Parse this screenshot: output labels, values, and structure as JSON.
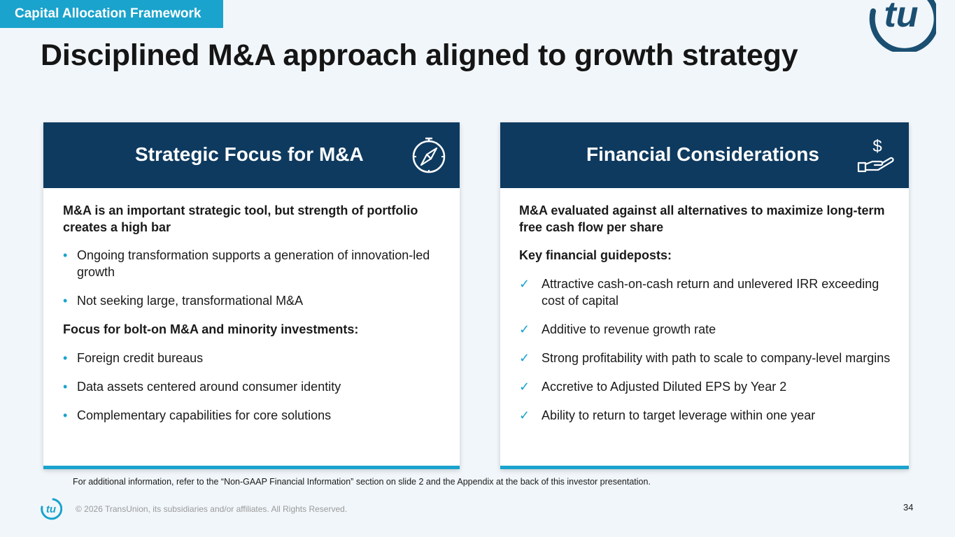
{
  "section_tag": "Capital Allocation Framework",
  "title": "Disciplined M&A approach aligned to growth strategy",
  "left_card": {
    "title": "Strategic Focus for M&A",
    "icon": "compass-icon",
    "intro": "M&A is an important strategic tool, but strength of portfolio creates a high bar",
    "bullets_1": [
      "Ongoing transformation supports a generation of innovation-led growth",
      "Not seeking large, transformational M&A"
    ],
    "subhead": "Focus for bolt-on M&A and minority investments:",
    "bullets_2": [
      "Foreign credit bureaus",
      "Data assets centered around consumer identity",
      "Complementary capabilities for core solutions"
    ]
  },
  "right_card": {
    "title": "Financial Considerations",
    "icon": "dollar-hand-icon",
    "intro": "M&A evaluated against all alternatives to maximize long-term free cash flow per share",
    "subhead": "Key financial guideposts:",
    "checks": [
      "Attractive cash-on-cash return and unlevered IRR exceeding cost of capital",
      "Additive to revenue growth rate",
      "Strong profitability with path to scale to company-level margins",
      "Accretive to Adjusted Diluted EPS by Year 2",
      "Ability to return to target leverage within one year"
    ]
  },
  "bullet_glyph": "•",
  "check_glyph": "✓",
  "footnote": "For additional information, refer to the “Non-GAAP Financial Information” section on slide 2 and the Appendix at the back of this investor presentation.",
  "copyright": "© 2026 TransUnion, its subsidiaries and/or affiliates. All Rights Reserved.",
  "page_number": "34",
  "colors": {
    "navy": "#0e3a5f",
    "accent": "#1aa3cc",
    "background": "#f1f6fa",
    "logo": "#1b4f72"
  }
}
